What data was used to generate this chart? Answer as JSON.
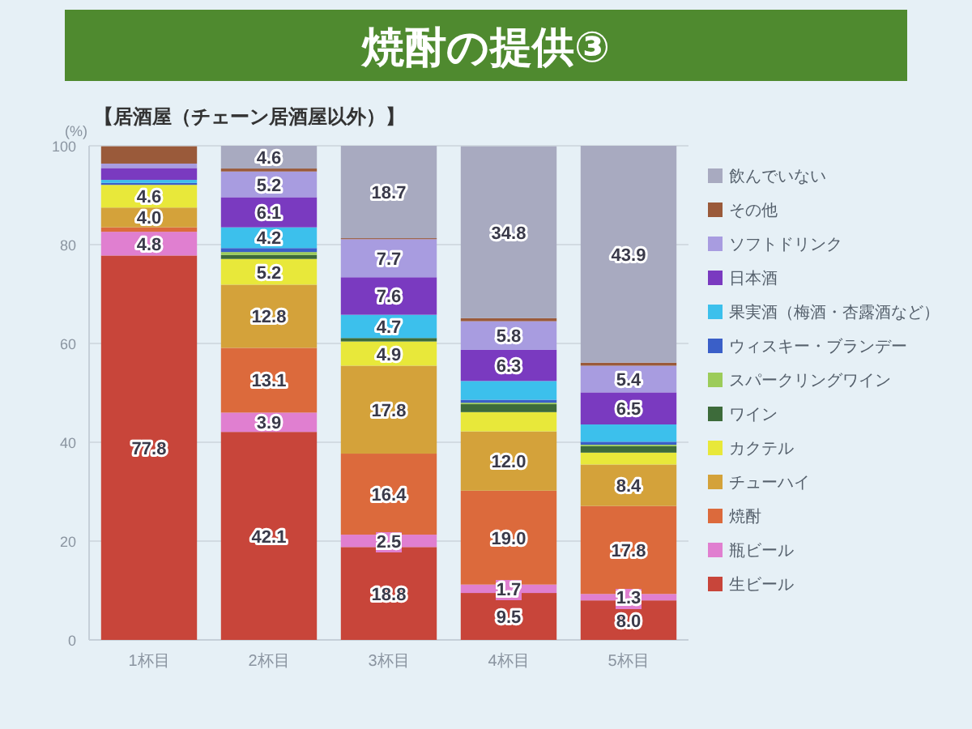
{
  "chart_data": {
    "type": "bar",
    "title": "焼酎の提供③",
    "subtitle": "【居酒屋（チェーン居酒屋以外）】",
    "ylabel": "(%)",
    "stacked": true,
    "grid": "y",
    "legend": "right",
    "ylim": [
      0,
      100
    ],
    "yticks": [
      0,
      20,
      40,
      60,
      80,
      100
    ],
    "categories": [
      "1杯目",
      "2杯目",
      "3杯目",
      "4杯目",
      "5杯目"
    ],
    "series": [
      {
        "name": "生ビール",
        "color": "#c8453a",
        "values": [
          77.8,
          42.1,
          18.8,
          9.5,
          8.0
        ],
        "value_labels": [
          "77.8",
          "42.1",
          "18.8",
          "9.5",
          "8.0"
        ]
      },
      {
        "name": "瓶ビール",
        "color": "#e07fd0",
        "values": [
          4.8,
          3.9,
          2.5,
          1.7,
          1.3
        ],
        "value_labels": [
          "4.8",
          "3.9",
          "2.5",
          "1.7",
          "1.3"
        ]
      },
      {
        "name": "焼酎",
        "color": "#dc6a3c",
        "values": [
          0.9,
          13.1,
          16.4,
          19.0,
          17.8
        ],
        "value_labels": [
          null,
          "13.1",
          "16.4",
          "19.0",
          "17.8"
        ]
      },
      {
        "name": "チューハイ",
        "color": "#d4a23a",
        "values": [
          4.0,
          12.8,
          17.8,
          12.0,
          8.4
        ],
        "value_labels": [
          "4.0",
          "12.8",
          "17.8",
          "12.0",
          "8.4"
        ]
      },
      {
        "name": "カクテル",
        "color": "#e8e83a",
        "values": [
          4.6,
          5.2,
          4.9,
          3.9,
          2.4
        ],
        "value_labels": [
          "4.6",
          "5.2",
          "4.9",
          null,
          null
        ]
      },
      {
        "name": "ワイン",
        "color": "#3d6b3a",
        "values": [
          0,
          0.8,
          0.7,
          1.6,
          1.3
        ],
        "value_labels": [
          null,
          null,
          null,
          null,
          null
        ]
      },
      {
        "name": "スパークリングワイン",
        "color": "#9ccc5a",
        "values": [
          0,
          0.6,
          0,
          0.3,
          0.3
        ],
        "value_labels": [
          null,
          null,
          null,
          null,
          null
        ]
      },
      {
        "name": "ウィスキー・ブランデー",
        "color": "#3a5fc8",
        "values": [
          0.4,
          0.8,
          0,
          0.6,
          0.6
        ],
        "value_labels": [
          null,
          null,
          null,
          null,
          null
        ]
      },
      {
        "name": "果実酒（梅酒・杏露酒など）",
        "color": "#3cc0ec",
        "values": [
          0.6,
          4.2,
          4.7,
          3.8,
          3.5
        ],
        "value_labels": [
          null,
          "4.2",
          "4.7",
          null,
          null
        ]
      },
      {
        "name": "日本酒",
        "color": "#7a3ac0",
        "values": [
          2.4,
          6.1,
          7.6,
          6.3,
          6.5
        ],
        "value_labels": [
          null,
          "6.1",
          "7.6",
          "6.3",
          "6.5"
        ]
      },
      {
        "name": "ソフトドリンク",
        "color": "#a89ce0",
        "values": [
          0.9,
          5.2,
          7.7,
          5.8,
          5.4
        ],
        "value_labels": [
          null,
          "5.2",
          "7.7",
          "5.8",
          "5.4"
        ]
      },
      {
        "name": "その他",
        "color": "#9a5a3a",
        "values": [
          3.5,
          0.6,
          0.2,
          0.6,
          0.6
        ],
        "value_labels": [
          null,
          null,
          null,
          null,
          null
        ]
      },
      {
        "name": "飲んでいない",
        "color": "#a8aac0",
        "values": [
          0,
          4.6,
          18.7,
          34.8,
          43.9
        ],
        "value_labels": [
          null,
          "4.6",
          "18.7",
          "34.8",
          "43.9"
        ]
      }
    ]
  }
}
